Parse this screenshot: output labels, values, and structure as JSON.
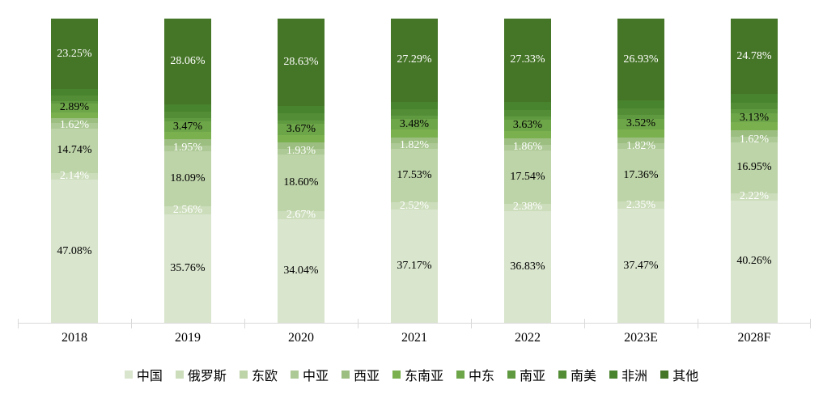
{
  "chart_data": {
    "type": "bar",
    "subtype": "stacked-100-percent",
    "categories": [
      "2018",
      "2019",
      "2020",
      "2021",
      "2022",
      "2023E",
      "2028F"
    ],
    "series": [
      {
        "key": "china",
        "name": "中国",
        "color": "#d9e5cd",
        "show_labels": true,
        "label_color": "#000000",
        "values": [
          47.08,
          35.76,
          34.04,
          37.17,
          36.83,
          37.47,
          40.26
        ]
      },
      {
        "key": "russia",
        "name": "俄罗斯",
        "color": "#ccddbb",
        "show_labels": true,
        "label_color": "#ffffff",
        "values": [
          2.14,
          2.56,
          2.67,
          2.52,
          2.38,
          2.35,
          2.22
        ]
      },
      {
        "key": "eastern-europe",
        "name": "东欧",
        "color": "#bdd3a8",
        "show_labels": true,
        "label_color": "#000000",
        "values": [
          14.74,
          18.09,
          18.6,
          17.53,
          17.54,
          17.36,
          16.95
        ]
      },
      {
        "key": "central-asia",
        "name": "中亚",
        "color": "#adc995",
        "show_labels": true,
        "label_color": "#ffffff",
        "values": [
          1.62,
          1.95,
          1.93,
          1.82,
          1.86,
          1.82,
          1.62
        ]
      },
      {
        "key": "west-asia",
        "name": "西亚",
        "color": "#9cbe80",
        "show_labels": false,
        "values_estimated": true,
        "values": [
          1.6,
          1.95,
          2.0,
          1.96,
          2.0,
          2.02,
          2.12
        ]
      },
      {
        "key": "southeast-asia",
        "name": "东南亚",
        "color": "#7ab04e",
        "show_labels": false,
        "values_estimated": true,
        "values": [
          2.0,
          2.45,
          2.55,
          2.48,
          2.53,
          2.56,
          2.68
        ]
      },
      {
        "key": "middle-east",
        "name": "中东",
        "color": "#6da549",
        "show_labels": true,
        "label_color": "#000000",
        "values": [
          2.89,
          3.47,
          3.67,
          3.48,
          3.63,
          3.52,
          3.13
        ]
      },
      {
        "key": "south-asia",
        "name": "南亚",
        "color": "#609a40",
        "show_labels": false,
        "values_estimated": true,
        "values": [
          0.9,
          1.1,
          1.15,
          1.12,
          1.14,
          1.16,
          1.21
        ]
      },
      {
        "key": "south-america",
        "name": "南美",
        "color": "#538e36",
        "show_labels": false,
        "values_estimated": true,
        "values": [
          1.7,
          2.1,
          2.15,
          2.1,
          2.15,
          2.17,
          2.27
        ]
      },
      {
        "key": "africa",
        "name": "非洲",
        "color": "#48832d",
        "show_labels": false,
        "values_estimated": true,
        "values": [
          2.08,
          2.51,
          2.61,
          2.53,
          2.61,
          2.64,
          2.76
        ]
      },
      {
        "key": "other",
        "name": "其他",
        "color": "#457527",
        "show_labels": true,
        "label_color": "#ffffff",
        "values": [
          23.25,
          28.06,
          28.63,
          27.29,
          27.33,
          26.93,
          24.78
        ]
      }
    ],
    "value_suffix": "%",
    "label_format": "0.00%",
    "ylim": [
      0,
      100
    ],
    "grid": false,
    "legend_position": "bottom",
    "axis_color": "#d9d9d9"
  }
}
